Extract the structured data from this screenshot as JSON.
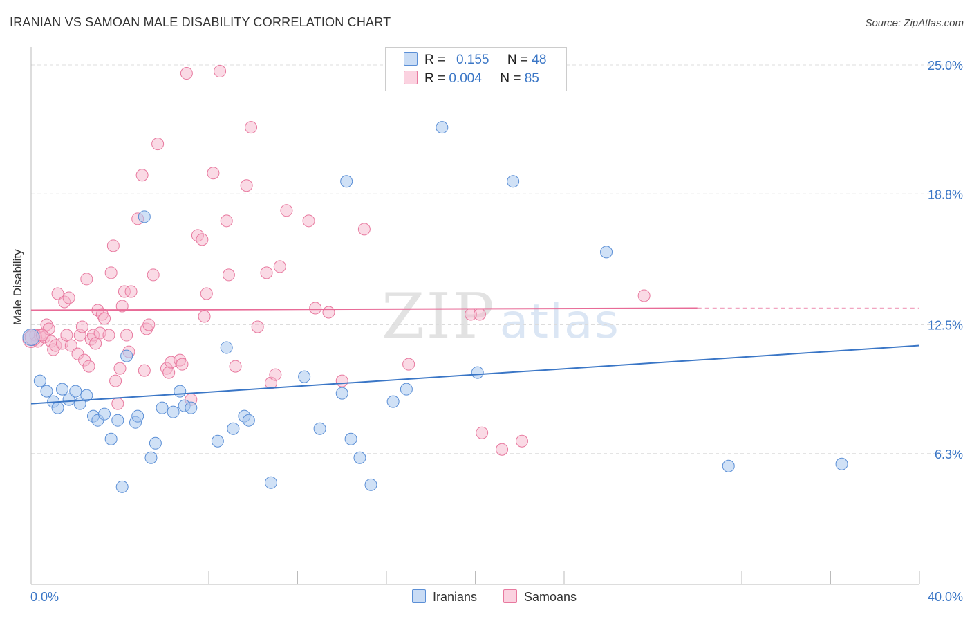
{
  "title": "IRANIAN VS SAMOAN MALE DISABILITY CORRELATION CHART",
  "source": "Source: ZipAtlas.com",
  "watermark": {
    "zip": "ZIP",
    "atlas": "atlas"
  },
  "legend_box": {
    "rows": [
      {
        "r_label": "R =",
        "r_value": "0.155",
        "n_label": "N =",
        "n_value": "48",
        "color": "#a9c8ee"
      },
      {
        "r_label": "R =",
        "r_value": "0.004",
        "n_label": "N =",
        "n_value": "85",
        "color": "#f6b6cb"
      }
    ]
  },
  "bottom_legend": [
    {
      "label": "Iranians",
      "color": "#a9c8ee"
    },
    {
      "label": "Samoans",
      "color": "#f6b6cb"
    }
  ],
  "chart_data": {
    "type": "scatter",
    "ylabel": "Male Disability",
    "x_axis": {
      "min": 0,
      "max": 40,
      "tick_labels": [
        "0.0%",
        "40.0%"
      ]
    },
    "y_axis": {
      "min": 0,
      "max": 25.8,
      "gridlines": [
        6.3,
        12.5,
        18.8,
        25.0
      ],
      "tick_labels": [
        "6.3%",
        "12.5%",
        "18.8%",
        "25.0%"
      ]
    },
    "grid": true,
    "colors": {
      "iranians": "#3a76c6",
      "samoans": "#e86b97",
      "iranians_fill": "#a9c8ee",
      "samoans_fill": "#f6b6cb"
    },
    "series": [
      {
        "name": "Iranians",
        "trend": {
          "x": [
            0,
            40
          ],
          "y": [
            8.7,
            11.5
          ]
        },
        "points": [
          [
            0.0,
            11.9
          ],
          [
            0.4,
            9.8
          ],
          [
            0.7,
            9.3
          ],
          [
            1.0,
            8.8
          ],
          [
            1.2,
            8.5
          ],
          [
            1.4,
            9.4
          ],
          [
            1.7,
            8.9
          ],
          [
            2.0,
            9.3
          ],
          [
            2.2,
            8.7
          ],
          [
            2.5,
            9.1
          ],
          [
            2.8,
            8.1
          ],
          [
            3.0,
            7.9
          ],
          [
            3.3,
            8.2
          ],
          [
            3.6,
            7.0
          ],
          [
            3.9,
            7.9
          ],
          [
            4.1,
            4.7
          ],
          [
            4.3,
            11.0
          ],
          [
            4.7,
            7.8
          ],
          [
            4.8,
            8.1
          ],
          [
            5.1,
            17.7
          ],
          [
            5.4,
            6.1
          ],
          [
            5.6,
            6.8
          ],
          [
            5.9,
            8.5
          ],
          [
            6.4,
            8.3
          ],
          [
            6.7,
            9.3
          ],
          [
            6.9,
            8.6
          ],
          [
            7.2,
            8.5
          ],
          [
            8.4,
            6.9
          ],
          [
            8.8,
            11.4
          ],
          [
            9.1,
            7.5
          ],
          [
            9.6,
            8.1
          ],
          [
            9.8,
            7.9
          ],
          [
            10.8,
            4.9
          ],
          [
            12.3,
            10.0
          ],
          [
            13.0,
            7.5
          ],
          [
            14.0,
            9.2
          ],
          [
            14.2,
            19.4
          ],
          [
            14.4,
            7.0
          ],
          [
            14.8,
            6.1
          ],
          [
            15.3,
            4.8
          ],
          [
            16.3,
            8.8
          ],
          [
            16.9,
            9.4
          ],
          [
            18.5,
            22.0
          ],
          [
            20.1,
            10.2
          ],
          [
            21.7,
            19.4
          ],
          [
            25.9,
            16.0
          ],
          [
            31.4,
            5.7
          ],
          [
            36.5,
            5.8
          ]
        ]
      },
      {
        "name": "Samoans",
        "trend": {
          "x": [
            0,
            30
          ],
          "y": [
            13.2,
            13.3
          ]
        },
        "trend_dashed": {
          "x": [
            30,
            40
          ],
          "y": [
            13.3,
            13.3
          ]
        },
        "points": [
          [
            0.0,
            11.8
          ],
          [
            0.2,
            12.0
          ],
          [
            0.3,
            11.7
          ],
          [
            0.4,
            12.0
          ],
          [
            0.6,
            11.9
          ],
          [
            0.7,
            12.5
          ],
          [
            0.8,
            12.3
          ],
          [
            0.9,
            11.7
          ],
          [
            1.0,
            11.3
          ],
          [
            1.1,
            11.5
          ],
          [
            1.2,
            14.0
          ],
          [
            1.4,
            11.6
          ],
          [
            1.5,
            13.6
          ],
          [
            1.6,
            12.0
          ],
          [
            1.7,
            13.8
          ],
          [
            1.8,
            11.5
          ],
          [
            2.1,
            11.1
          ],
          [
            2.2,
            12.0
          ],
          [
            2.3,
            12.4
          ],
          [
            2.4,
            10.8
          ],
          [
            2.5,
            14.7
          ],
          [
            2.6,
            10.5
          ],
          [
            2.7,
            11.8
          ],
          [
            2.8,
            12.0
          ],
          [
            2.9,
            11.6
          ],
          [
            3.0,
            13.2
          ],
          [
            3.1,
            12.1
          ],
          [
            3.2,
            13.0
          ],
          [
            3.3,
            12.8
          ],
          [
            3.5,
            12.0
          ],
          [
            3.6,
            15.0
          ],
          [
            3.7,
            16.3
          ],
          [
            3.8,
            9.8
          ],
          [
            3.9,
            8.7
          ],
          [
            4.0,
            10.4
          ],
          [
            4.1,
            13.4
          ],
          [
            4.2,
            14.1
          ],
          [
            4.3,
            12.0
          ],
          [
            4.4,
            11.2
          ],
          [
            4.5,
            14.1
          ],
          [
            4.8,
            17.6
          ],
          [
            5.0,
            19.7
          ],
          [
            5.1,
            10.3
          ],
          [
            5.2,
            12.3
          ],
          [
            5.3,
            12.5
          ],
          [
            5.5,
            14.9
          ],
          [
            5.7,
            21.2
          ],
          [
            6.1,
            10.4
          ],
          [
            6.2,
            10.2
          ],
          [
            6.3,
            10.7
          ],
          [
            6.7,
            10.8
          ],
          [
            6.8,
            10.6
          ],
          [
            7.0,
            24.6
          ],
          [
            7.2,
            8.9
          ],
          [
            7.5,
            16.8
          ],
          [
            7.7,
            16.6
          ],
          [
            7.8,
            12.9
          ],
          [
            7.9,
            14.0
          ],
          [
            8.2,
            19.8
          ],
          [
            8.5,
            24.7
          ],
          [
            8.8,
            17.5
          ],
          [
            8.9,
            14.9
          ],
          [
            9.2,
            10.5
          ],
          [
            9.7,
            19.2
          ],
          [
            9.9,
            22.0
          ],
          [
            10.2,
            12.4
          ],
          [
            10.6,
            15.0
          ],
          [
            10.8,
            9.7
          ],
          [
            11.0,
            10.1
          ],
          [
            11.2,
            15.3
          ],
          [
            11.5,
            18.0
          ],
          [
            12.5,
            17.5
          ],
          [
            12.8,
            13.3
          ],
          [
            13.4,
            13.1
          ],
          [
            14.0,
            9.8
          ],
          [
            15.0,
            17.1
          ],
          [
            17.0,
            10.6
          ],
          [
            19.8,
            13.0
          ],
          [
            20.2,
            13.0
          ],
          [
            20.3,
            7.3
          ],
          [
            21.2,
            6.5
          ],
          [
            22.1,
            6.9
          ],
          [
            27.6,
            13.9
          ],
          [
            0.1,
            11.9
          ],
          [
            0.5,
            12.0
          ]
        ]
      }
    ]
  }
}
